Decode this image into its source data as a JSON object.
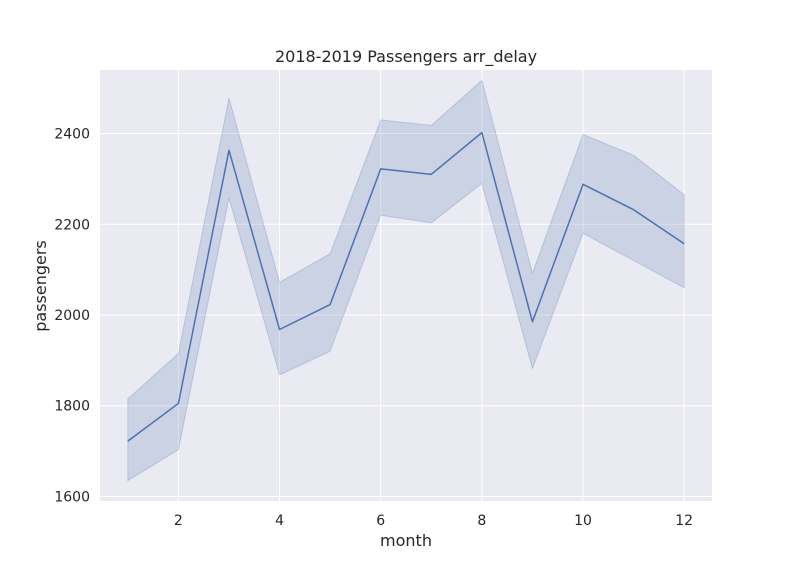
{
  "chart_data": {
    "type": "line",
    "title": "2018-2019 Passengers arr_delay",
    "xlabel": "month",
    "ylabel": "passengers",
    "xlim": [
      0.45,
      12.55
    ],
    "ylim": [
      1590,
      2540
    ],
    "x_ticks": [
      2,
      4,
      6,
      8,
      10,
      12
    ],
    "y_ticks": [
      1600,
      1800,
      2000,
      2200,
      2400
    ],
    "grid": true,
    "legend": "none",
    "colors": {
      "background": "#eaeaf2",
      "grid": "#ffffff",
      "line": "#4c72b0",
      "band": "#4c72b0"
    },
    "series": [
      {
        "x": [
          1,
          2,
          3,
          4,
          5,
          6,
          7,
          8,
          9,
          10,
          11,
          12
        ],
        "y": [
          1722,
          1805,
          2363,
          1968,
          2023,
          2322,
          2310,
          2402,
          1985,
          2288,
          2232,
          2157
        ],
        "ci_low": [
          1635,
          1703,
          2258,
          1868,
          1920,
          2220,
          2203,
          2290,
          1882,
          2180,
          2120,
          2060
        ],
        "ci_high": [
          1815,
          1915,
          2478,
          2072,
          2135,
          2430,
          2418,
          2517,
          2092,
          2398,
          2352,
          2265
        ]
      }
    ]
  }
}
